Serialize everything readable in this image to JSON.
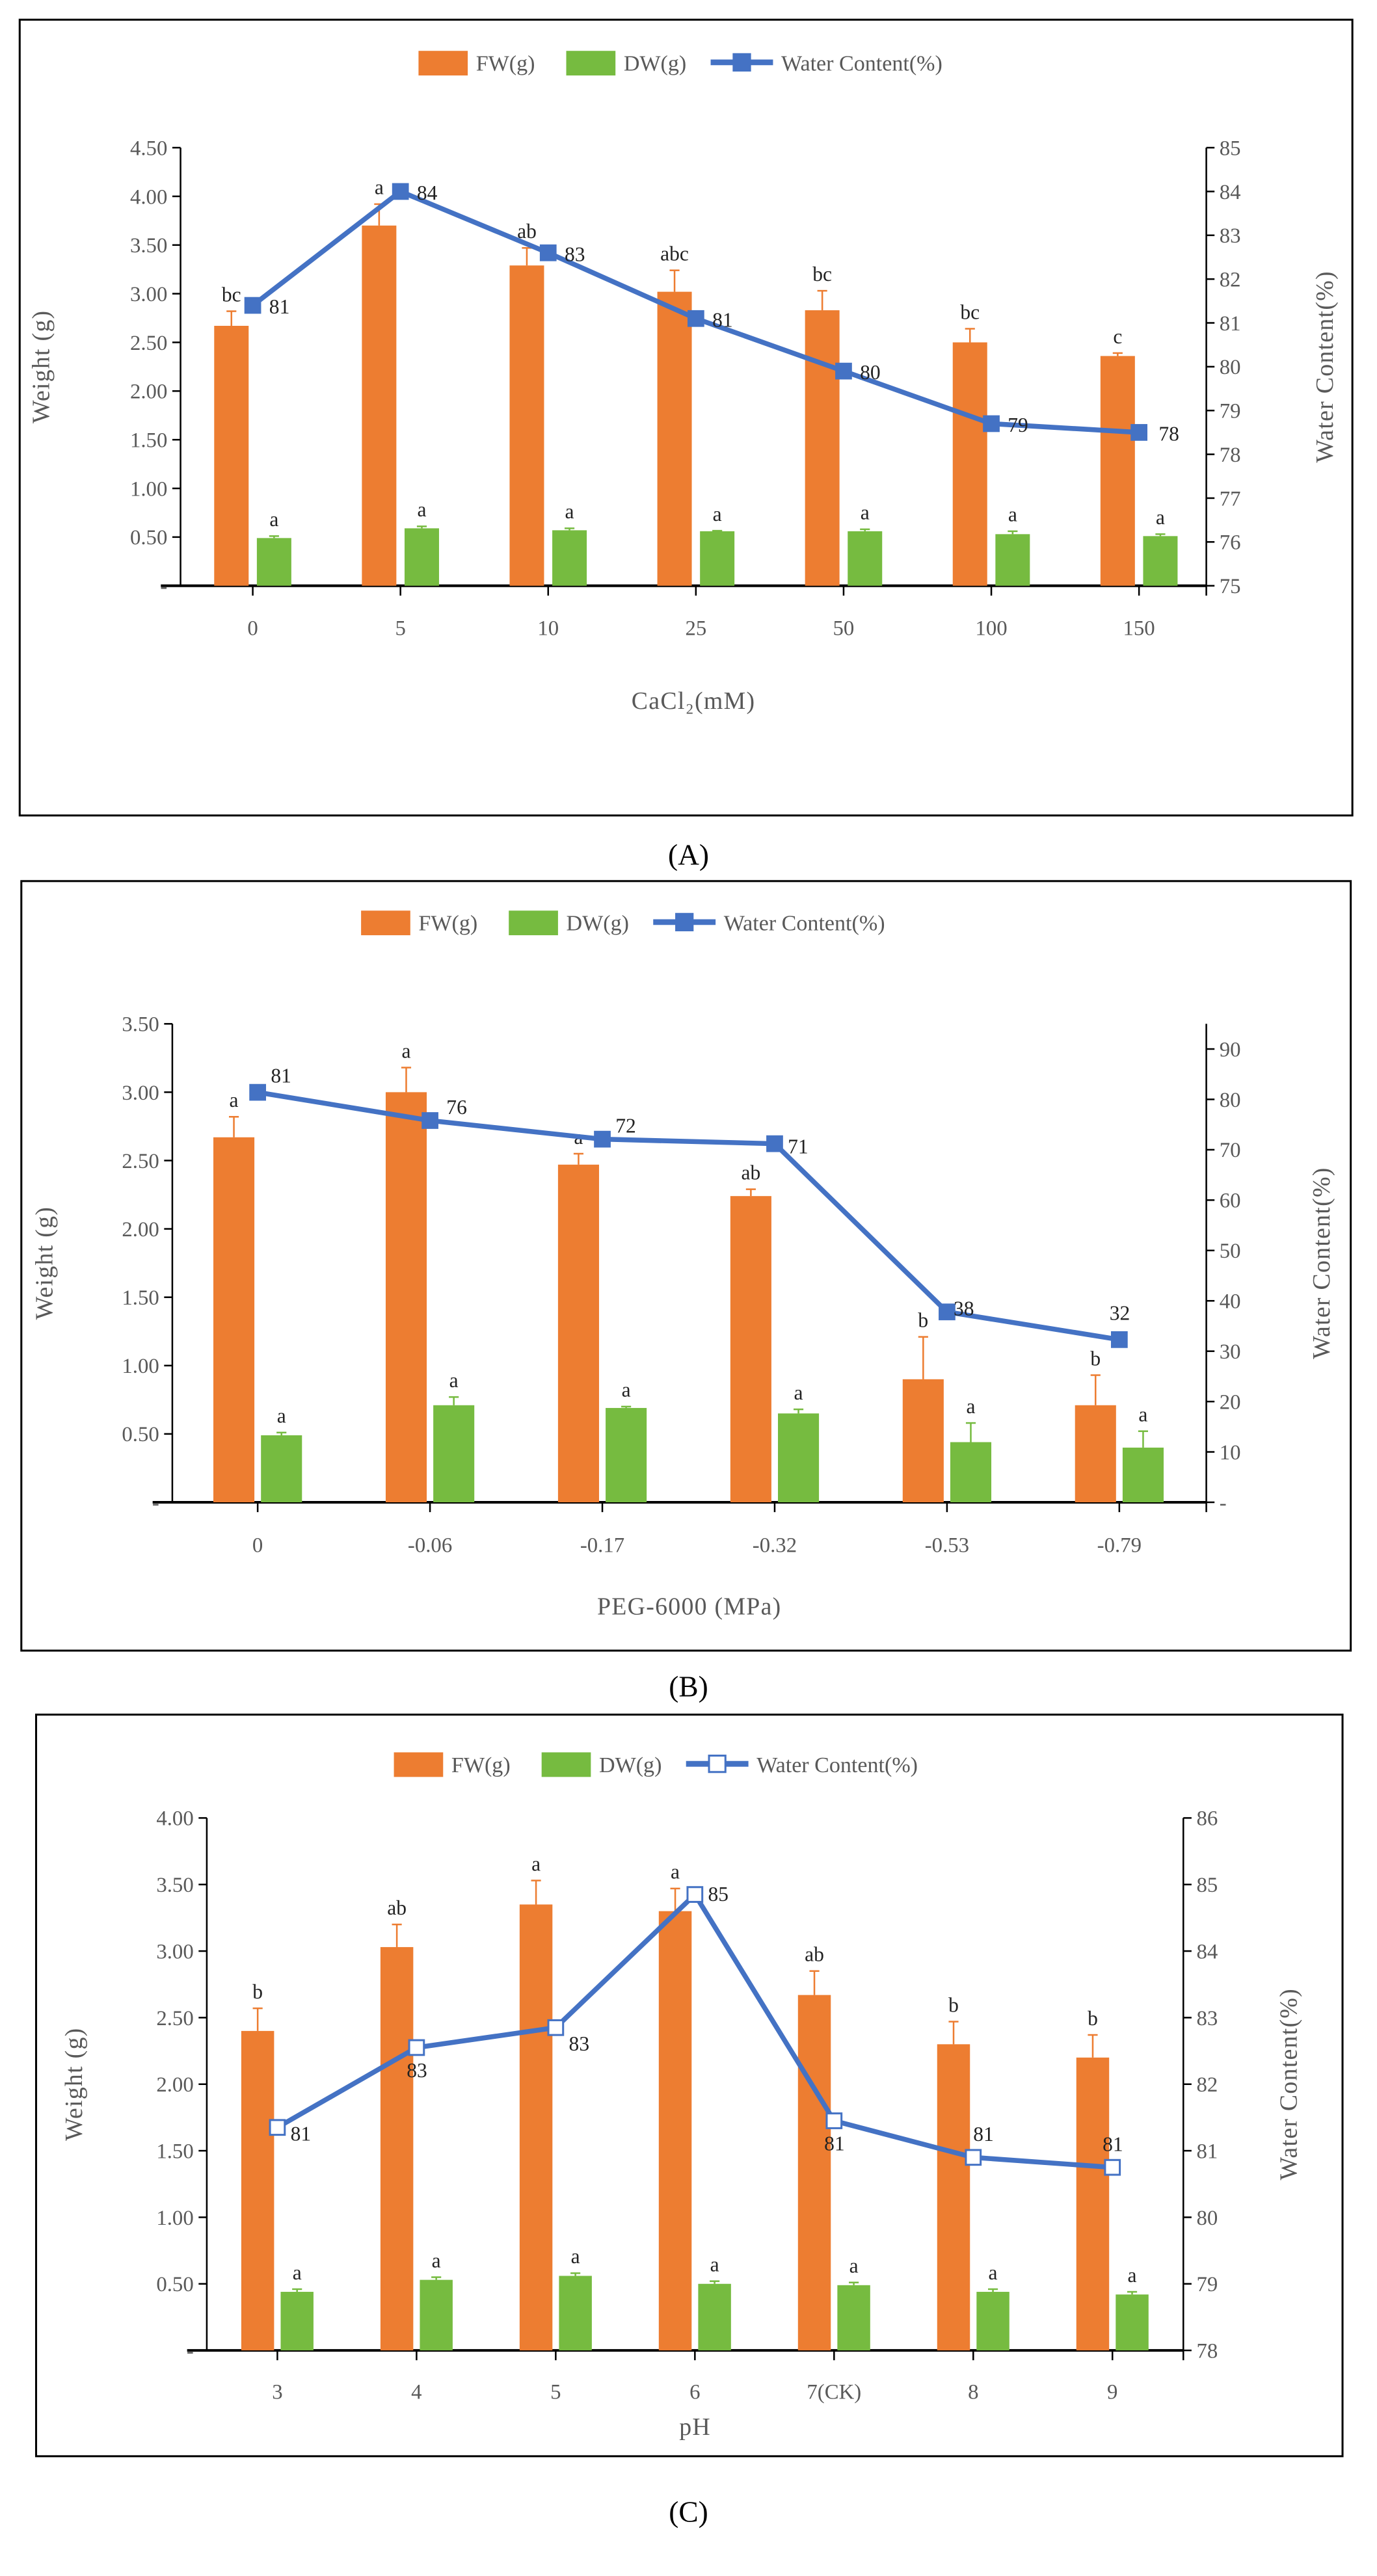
{
  "colors": {
    "fw": "#ED7D31",
    "dw": "#76BB40",
    "wc": "#4472C4",
    "axis": "#000000",
    "text": "#595959"
  },
  "legend": {
    "fw": "FW(g)",
    "dw": "DW(g)",
    "wc": "Water Content(%)"
  },
  "chart_data": [
    {
      "type": "bar",
      "caption": "(A)",
      "title": "",
      "xlabel": "CaCl₂(mM)",
      "ylabel": "Weight (g)",
      "y2label": "Water Content(%)",
      "categories": [
        "0",
        "5",
        "10",
        "25",
        "50",
        "100",
        "150"
      ],
      "ylim": [
        0,
        4.5
      ],
      "yticks": [
        "-",
        "0.50",
        "1.00",
        "1.50",
        "2.00",
        "2.50",
        "3.00",
        "3.50",
        "4.00",
        "4.50"
      ],
      "y2lim": [
        75,
        85
      ],
      "y2ticks": [
        "75",
        "76",
        "77",
        "78",
        "79",
        "80",
        "81",
        "82",
        "83",
        "84",
        "85"
      ],
      "legend_position": "top-center",
      "series": [
        {
          "name": "FW(g)",
          "kind": "bar",
          "values": [
            2.67,
            3.7,
            3.29,
            3.02,
            2.83,
            2.5,
            2.36
          ],
          "errors": [
            0.15,
            0.22,
            0.18,
            0.22,
            0.2,
            0.14,
            0.03
          ],
          "letters": [
            "bc",
            "a",
            "ab",
            "abc",
            "bc",
            "bc",
            "c"
          ]
        },
        {
          "name": "DW(g)",
          "kind": "bar",
          "values": [
            0.49,
            0.59,
            0.57,
            0.56,
            0.56,
            0.53,
            0.51
          ],
          "errors": [
            0.02,
            0.02,
            0.02,
            0.005,
            0.02,
            0.03,
            0.02
          ],
          "letters": [
            "a",
            "a",
            "a",
            "a",
            "a",
            "a",
            "a"
          ]
        },
        {
          "name": "Water Content(%)",
          "kind": "line",
          "axis": "right",
          "marker": "filled-square",
          "values": [
            81.4,
            84.0,
            82.6,
            81.1,
            79.9,
            78.7,
            78.5
          ],
          "labels": [
            "81",
            "84",
            "83",
            "81",
            "80",
            "79",
            "78"
          ]
        }
      ]
    },
    {
      "type": "bar",
      "caption": "(B)",
      "title": "",
      "xlabel": "PEG-6000 (MPa)",
      "ylabel": "Weight (g)",
      "y2label": "Water Content(%)",
      "categories": [
        "0",
        "-0.06",
        "-0.17",
        "-0.32",
        "-0.53",
        "-0.79"
      ],
      "ylim": [
        0,
        3.5
      ],
      "yticks": [
        "-",
        "0.50",
        "1.00",
        "1.50",
        "2.00",
        "2.50",
        "3.00",
        "3.50"
      ],
      "y2lim": [
        0,
        95
      ],
      "y2ticks": [
        "-",
        "10",
        "20",
        "30",
        "40",
        "50",
        "60",
        "70",
        "80",
        "90"
      ],
      "legend_position": "top-center",
      "series": [
        {
          "name": "FW(g)",
          "kind": "bar",
          "values": [
            2.67,
            3.0,
            2.47,
            2.24,
            0.9,
            0.71
          ],
          "errors": [
            0.15,
            0.18,
            0.08,
            0.05,
            0.31,
            0.22
          ],
          "letters": [
            "a",
            "a",
            "a",
            "ab",
            "b",
            "b"
          ]
        },
        {
          "name": "DW(g)",
          "kind": "bar",
          "values": [
            0.49,
            0.71,
            0.69,
            0.65,
            0.44,
            0.4
          ],
          "errors": [
            0.02,
            0.06,
            0.01,
            0.03,
            0.14,
            0.12
          ],
          "letters": [
            "a",
            "a",
            "a",
            "a",
            "a",
            "a"
          ]
        },
        {
          "name": "Water Content(%)",
          "kind": "line",
          "axis": "right",
          "marker": "filled-square",
          "values": [
            81.4,
            75.8,
            72.1,
            71.2,
            37.8,
            32.3
          ],
          "labels": [
            "81",
            "76",
            "72",
            "71",
            "38",
            "32"
          ]
        }
      ]
    },
    {
      "type": "bar",
      "caption": "(C)",
      "title": "",
      "xlabel": "pH",
      "ylabel": "Weight (g)",
      "y2label": "Water Content(%)",
      "categories": [
        "3",
        "4",
        "5",
        "6",
        "7(CK)",
        "8",
        "9"
      ],
      "ylim": [
        0,
        4.0
      ],
      "yticks": [
        "-",
        "0.50",
        "1.00",
        "1.50",
        "2.00",
        "2.50",
        "3.00",
        "3.50",
        "4.00"
      ],
      "y2lim": [
        78,
        86
      ],
      "y2ticks": [
        "78",
        "79",
        "80",
        "81",
        "82",
        "83",
        "84",
        "85",
        "86"
      ],
      "legend_position": "top-center",
      "series": [
        {
          "name": "FW(g)",
          "kind": "bar",
          "values": [
            2.4,
            3.03,
            3.35,
            3.3,
            2.67,
            2.3,
            2.2
          ],
          "errors": [
            0.17,
            0.17,
            0.18,
            0.17,
            0.18,
            0.17,
            0.17
          ],
          "letters": [
            "b",
            "ab",
            "a",
            "a",
            "ab",
            "b",
            "b"
          ]
        },
        {
          "name": "DW(g)",
          "kind": "bar",
          "values": [
            0.44,
            0.53,
            0.56,
            0.5,
            0.49,
            0.44,
            0.42
          ],
          "errors": [
            0.02,
            0.02,
            0.02,
            0.02,
            0.02,
            0.02,
            0.02
          ],
          "letters": [
            "a",
            "a",
            "a",
            "a",
            "a",
            "a",
            "a"
          ]
        },
        {
          "name": "Water Content(%)",
          "kind": "line",
          "axis": "right",
          "marker": "open-square",
          "values": [
            81.35,
            82.55,
            82.85,
            84.85,
            81.45,
            80.9,
            80.75
          ],
          "labels": [
            "81",
            "83",
            "83",
            "85",
            "81",
            "81",
            "81"
          ]
        }
      ]
    }
  ]
}
